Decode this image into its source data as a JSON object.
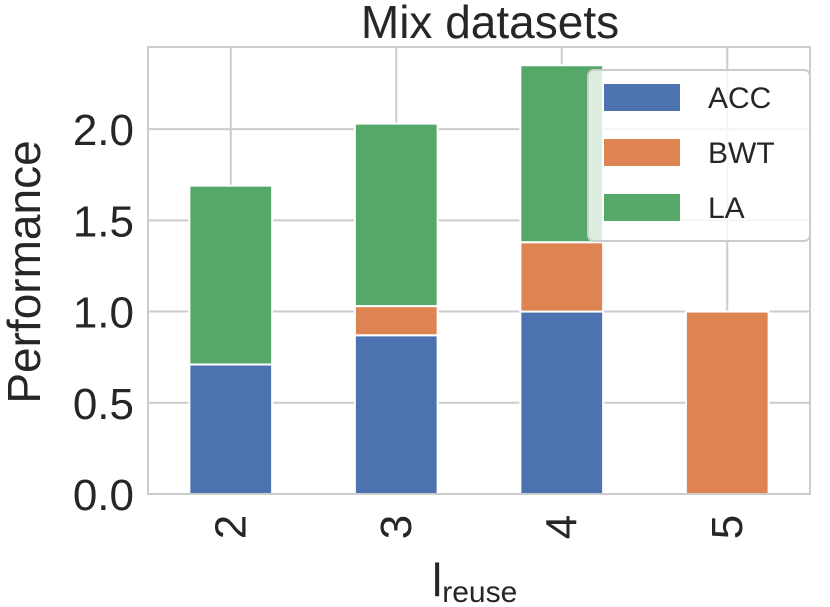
{
  "chart_data": {
    "type": "bar",
    "stacked": true,
    "title": "Mix datasets",
    "xlabel": "l",
    "xlabel_subscript": "reuse",
    "ylabel": "Performance",
    "categories": [
      "2",
      "3",
      "4",
      "5"
    ],
    "series": [
      {
        "name": "ACC",
        "color": "#4c72b0",
        "values": [
          0.71,
          0.87,
          1.0,
          0.0
        ]
      },
      {
        "name": "BWT",
        "color": "#dd8452",
        "values": [
          0.0,
          0.16,
          0.38,
          1.0
        ]
      },
      {
        "name": "LA",
        "color": "#55a868",
        "values": [
          0.98,
          1.0,
          0.97,
          0.0
        ]
      }
    ],
    "yticks": [
      "0.0",
      "0.5",
      "1.0",
      "1.5",
      "2.0"
    ],
    "ylim": [
      0,
      2.45
    ],
    "grid": true,
    "legend_position": "top-right"
  }
}
